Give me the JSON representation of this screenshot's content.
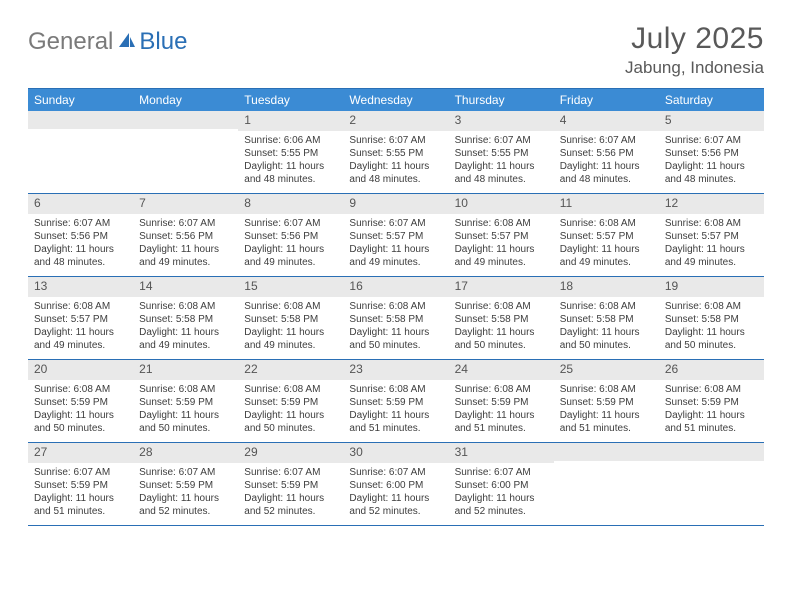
{
  "brand": {
    "part1": "General",
    "part2": "Blue"
  },
  "title": "July 2025",
  "location": "Jabung, Indonesia",
  "colors": {
    "header_bg": "#3b8bd4",
    "rule": "#2a6fb5",
    "daynum_bg": "#e9e9e9",
    "text": "#3d3d3d",
    "brand_gray": "#7a7a7a",
    "brand_blue": "#2a6fb5"
  },
  "day_headers": [
    "Sunday",
    "Monday",
    "Tuesday",
    "Wednesday",
    "Thursday",
    "Friday",
    "Saturday"
  ],
  "weeks": [
    [
      {
        "n": "",
        "rise": "",
        "set": "",
        "day": ""
      },
      {
        "n": "",
        "rise": "",
        "set": "",
        "day": ""
      },
      {
        "n": "1",
        "rise": "Sunrise: 6:06 AM",
        "set": "Sunset: 5:55 PM",
        "day": "Daylight: 11 hours and 48 minutes."
      },
      {
        "n": "2",
        "rise": "Sunrise: 6:07 AM",
        "set": "Sunset: 5:55 PM",
        "day": "Daylight: 11 hours and 48 minutes."
      },
      {
        "n": "3",
        "rise": "Sunrise: 6:07 AM",
        "set": "Sunset: 5:55 PM",
        "day": "Daylight: 11 hours and 48 minutes."
      },
      {
        "n": "4",
        "rise": "Sunrise: 6:07 AM",
        "set": "Sunset: 5:56 PM",
        "day": "Daylight: 11 hours and 48 minutes."
      },
      {
        "n": "5",
        "rise": "Sunrise: 6:07 AM",
        "set": "Sunset: 5:56 PM",
        "day": "Daylight: 11 hours and 48 minutes."
      }
    ],
    [
      {
        "n": "6",
        "rise": "Sunrise: 6:07 AM",
        "set": "Sunset: 5:56 PM",
        "day": "Daylight: 11 hours and 48 minutes."
      },
      {
        "n": "7",
        "rise": "Sunrise: 6:07 AM",
        "set": "Sunset: 5:56 PM",
        "day": "Daylight: 11 hours and 49 minutes."
      },
      {
        "n": "8",
        "rise": "Sunrise: 6:07 AM",
        "set": "Sunset: 5:56 PM",
        "day": "Daylight: 11 hours and 49 minutes."
      },
      {
        "n": "9",
        "rise": "Sunrise: 6:07 AM",
        "set": "Sunset: 5:57 PM",
        "day": "Daylight: 11 hours and 49 minutes."
      },
      {
        "n": "10",
        "rise": "Sunrise: 6:08 AM",
        "set": "Sunset: 5:57 PM",
        "day": "Daylight: 11 hours and 49 minutes."
      },
      {
        "n": "11",
        "rise": "Sunrise: 6:08 AM",
        "set": "Sunset: 5:57 PM",
        "day": "Daylight: 11 hours and 49 minutes."
      },
      {
        "n": "12",
        "rise": "Sunrise: 6:08 AM",
        "set": "Sunset: 5:57 PM",
        "day": "Daylight: 11 hours and 49 minutes."
      }
    ],
    [
      {
        "n": "13",
        "rise": "Sunrise: 6:08 AM",
        "set": "Sunset: 5:57 PM",
        "day": "Daylight: 11 hours and 49 minutes."
      },
      {
        "n": "14",
        "rise": "Sunrise: 6:08 AM",
        "set": "Sunset: 5:58 PM",
        "day": "Daylight: 11 hours and 49 minutes."
      },
      {
        "n": "15",
        "rise": "Sunrise: 6:08 AM",
        "set": "Sunset: 5:58 PM",
        "day": "Daylight: 11 hours and 49 minutes."
      },
      {
        "n": "16",
        "rise": "Sunrise: 6:08 AM",
        "set": "Sunset: 5:58 PM",
        "day": "Daylight: 11 hours and 50 minutes."
      },
      {
        "n": "17",
        "rise": "Sunrise: 6:08 AM",
        "set": "Sunset: 5:58 PM",
        "day": "Daylight: 11 hours and 50 minutes."
      },
      {
        "n": "18",
        "rise": "Sunrise: 6:08 AM",
        "set": "Sunset: 5:58 PM",
        "day": "Daylight: 11 hours and 50 minutes."
      },
      {
        "n": "19",
        "rise": "Sunrise: 6:08 AM",
        "set": "Sunset: 5:58 PM",
        "day": "Daylight: 11 hours and 50 minutes."
      }
    ],
    [
      {
        "n": "20",
        "rise": "Sunrise: 6:08 AM",
        "set": "Sunset: 5:59 PM",
        "day": "Daylight: 11 hours and 50 minutes."
      },
      {
        "n": "21",
        "rise": "Sunrise: 6:08 AM",
        "set": "Sunset: 5:59 PM",
        "day": "Daylight: 11 hours and 50 minutes."
      },
      {
        "n": "22",
        "rise": "Sunrise: 6:08 AM",
        "set": "Sunset: 5:59 PM",
        "day": "Daylight: 11 hours and 50 minutes."
      },
      {
        "n": "23",
        "rise": "Sunrise: 6:08 AM",
        "set": "Sunset: 5:59 PM",
        "day": "Daylight: 11 hours and 51 minutes."
      },
      {
        "n": "24",
        "rise": "Sunrise: 6:08 AM",
        "set": "Sunset: 5:59 PM",
        "day": "Daylight: 11 hours and 51 minutes."
      },
      {
        "n": "25",
        "rise": "Sunrise: 6:08 AM",
        "set": "Sunset: 5:59 PM",
        "day": "Daylight: 11 hours and 51 minutes."
      },
      {
        "n": "26",
        "rise": "Sunrise: 6:08 AM",
        "set": "Sunset: 5:59 PM",
        "day": "Daylight: 11 hours and 51 minutes."
      }
    ],
    [
      {
        "n": "27",
        "rise": "Sunrise: 6:07 AM",
        "set": "Sunset: 5:59 PM",
        "day": "Daylight: 11 hours and 51 minutes."
      },
      {
        "n": "28",
        "rise": "Sunrise: 6:07 AM",
        "set": "Sunset: 5:59 PM",
        "day": "Daylight: 11 hours and 52 minutes."
      },
      {
        "n": "29",
        "rise": "Sunrise: 6:07 AM",
        "set": "Sunset: 5:59 PM",
        "day": "Daylight: 11 hours and 52 minutes."
      },
      {
        "n": "30",
        "rise": "Sunrise: 6:07 AM",
        "set": "Sunset: 6:00 PM",
        "day": "Daylight: 11 hours and 52 minutes."
      },
      {
        "n": "31",
        "rise": "Sunrise: 6:07 AM",
        "set": "Sunset: 6:00 PM",
        "day": "Daylight: 11 hours and 52 minutes."
      },
      {
        "n": "",
        "rise": "",
        "set": "",
        "day": ""
      },
      {
        "n": "",
        "rise": "",
        "set": "",
        "day": ""
      }
    ]
  ]
}
